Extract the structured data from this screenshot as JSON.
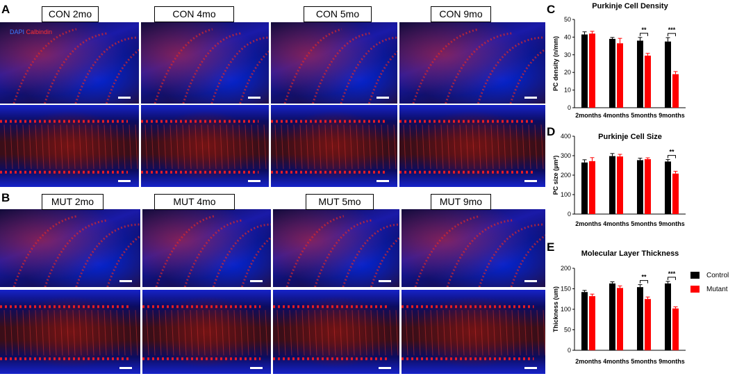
{
  "panels": {
    "a_letter": "A",
    "b_letter": "B",
    "c_letter": "C",
    "d_letter": "D",
    "e_letter": "E"
  },
  "micro_labels": {
    "con": [
      "CON 2mo",
      "CON 4mo",
      "CON 5mo",
      "CON 9mo"
    ],
    "mut": [
      "MUT 2mo",
      "MUT 4mo",
      "MUT 5mo",
      "MUT 9mo"
    ]
  },
  "stain_legend": {
    "dapi": "DAPI",
    "calbindin": "Calbindin"
  },
  "colors": {
    "control": "#000000",
    "mutant": "#ff0000",
    "dapi": "#1a2ad8",
    "calbindin": "#e02020"
  },
  "legend": {
    "control": "Control",
    "mutant": "Mutant"
  },
  "chart_data": [
    {
      "type": "bar",
      "title": "Purkinje Cell Density",
      "ylabel": "PC density (n/mm)",
      "ylim": [
        0,
        50
      ],
      "yticks": [
        0,
        10,
        20,
        30,
        40,
        50
      ],
      "categories": [
        "2months",
        "4months",
        "5months",
        "9months"
      ],
      "series": [
        {
          "name": "Control",
          "values": [
            41.5,
            39,
            38,
            37.5
          ],
          "errors": [
            1.5,
            0.8,
            1.8,
            2.2
          ]
        },
        {
          "name": "Mutant",
          "values": [
            42,
            36.5,
            29.5,
            19
          ],
          "errors": [
            1.3,
            2.8,
            1.3,
            1.5
          ]
        }
      ],
      "significance": [
        {
          "category": "5months",
          "label": "**"
        },
        {
          "category": "9months",
          "label": "***"
        }
      ]
    },
    {
      "type": "bar",
      "title": "Purkinje Cell Size",
      "ylabel": "PC size (µm²)",
      "ylim": [
        0,
        400
      ],
      "yticks": [
        0,
        100,
        200,
        300,
        400
      ],
      "categories": [
        "2months",
        "4months",
        "5months",
        "9months"
      ],
      "series": [
        {
          "name": "Control",
          "values": [
            265,
            298,
            277,
            270
          ],
          "errors": [
            14,
            13,
            10,
            10
          ]
        },
        {
          "name": "Mutant",
          "values": [
            272,
            296,
            282,
            208
          ],
          "errors": [
            18,
            11,
            7,
            12
          ]
        }
      ],
      "significance": [
        {
          "category": "9months",
          "label": "**"
        }
      ]
    },
    {
      "type": "bar",
      "title": "Molecular Layer Thickness",
      "ylabel": "Thickness (um)",
      "ylim": [
        0,
        200
      ],
      "yticks": [
        0,
        50,
        100,
        150,
        200
      ],
      "categories": [
        "2months",
        "4months",
        "5months",
        "9months"
      ],
      "series": [
        {
          "name": "Control",
          "values": [
            142,
            163,
            154,
            163
          ],
          "errors": [
            4,
            4,
            6,
            5
          ]
        },
        {
          "name": "Mutant",
          "values": [
            132,
            152,
            125,
            102
          ],
          "errors": [
            5,
            5,
            5,
            4
          ]
        }
      ],
      "significance": [
        {
          "category": "5months",
          "label": "**"
        },
        {
          "category": "9months",
          "label": "***"
        }
      ]
    }
  ]
}
